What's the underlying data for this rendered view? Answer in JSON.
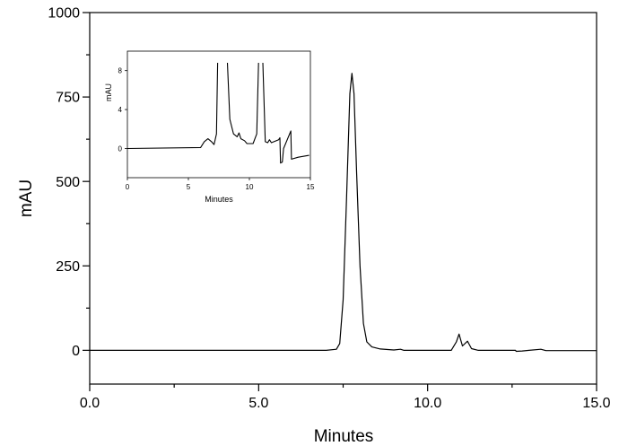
{
  "chart_data": [
    {
      "type": "line",
      "xlabel": "Minutes",
      "ylabel": "mAU",
      "xlim": [
        0,
        15
      ],
      "ylim": [
        -100,
        1000
      ],
      "xticks": [
        0,
        5,
        10,
        15
      ],
      "xtick_labels": [
        "0.0",
        "5.0",
        "10.0",
        "15.0"
      ],
      "yticks": [
        0,
        250,
        500,
        750,
        1000
      ],
      "ytick_labels": [
        "0",
        "250",
        "500",
        "750",
        "1000"
      ],
      "grid": false,
      "line_color": "#000000",
      "series": [
        {
          "x": [
            0,
            7.0,
            7.3,
            7.4,
            7.5,
            7.6,
            7.7,
            7.76,
            7.82,
            7.9,
            8.0,
            8.1,
            8.2,
            8.35,
            8.6,
            9.0,
            9.2,
            9.3,
            10.7,
            10.85,
            10.93,
            11.03,
            11.18,
            11.3,
            11.5,
            12.6,
            12.62,
            12.8,
            13.0,
            13.35,
            13.5,
            15.0
          ],
          "y": [
            0,
            0,
            3,
            20,
            150,
            450,
            760,
            820,
            760,
            520,
            250,
            80,
            25,
            10,
            4,
            1,
            3,
            0,
            0,
            25,
            48,
            13,
            27,
            5,
            0,
            0,
            -3,
            -2,
            0,
            3,
            -1,
            -1
          ]
        }
      ]
    },
    {
      "type": "line",
      "inset": true,
      "xlabel": "Minutes",
      "ylabel": "mAU",
      "xlim": [
        0,
        15
      ],
      "ylim": [
        -3,
        10
      ],
      "xticks": [
        0,
        5,
        10,
        15
      ],
      "xtick_labels": [
        "0",
        "5",
        "10",
        "15"
      ],
      "yticks": [
        0,
        4,
        8
      ],
      "ytick_labels": [
        "0",
        "4",
        "8"
      ],
      "grid": false,
      "line_color": "#000000",
      "series": [
        {
          "segments": [
            {
              "x": [
                0,
                6.0,
                6.3,
                6.6,
                6.9,
                7.1,
                7.3,
                7.4
              ],
              "y": [
                0,
                0.1,
                0.7,
                1.0,
                0.7,
                0.4,
                1.5,
                8.8
              ]
            },
            {
              "x": [
                8.2,
                8.4,
                8.7,
                9.0,
                9.15,
                9.3,
                9.6,
                9.8,
                10.3,
                10.6,
                10.75
              ],
              "y": [
                8.8,
                3.0,
                1.5,
                1.2,
                1.6,
                1.0,
                0.8,
                0.5,
                0.5,
                1.5,
                8.8
              ]
            },
            {
              "x": [
                11.1,
                11.3,
                11.5,
                11.65,
                11.8,
                12.4,
                12.5,
                12.55,
                12.7,
                12.8,
                13.4,
                13.45,
                14.0,
                14.9
              ],
              "y": [
                8.8,
                0.7,
                0.6,
                0.9,
                0.6,
                0.9,
                1.1,
                -1.5,
                -1.4,
                0.0,
                1.8,
                -1.1,
                -0.9,
                -0.7
              ]
            }
          ]
        }
      ]
    }
  ]
}
